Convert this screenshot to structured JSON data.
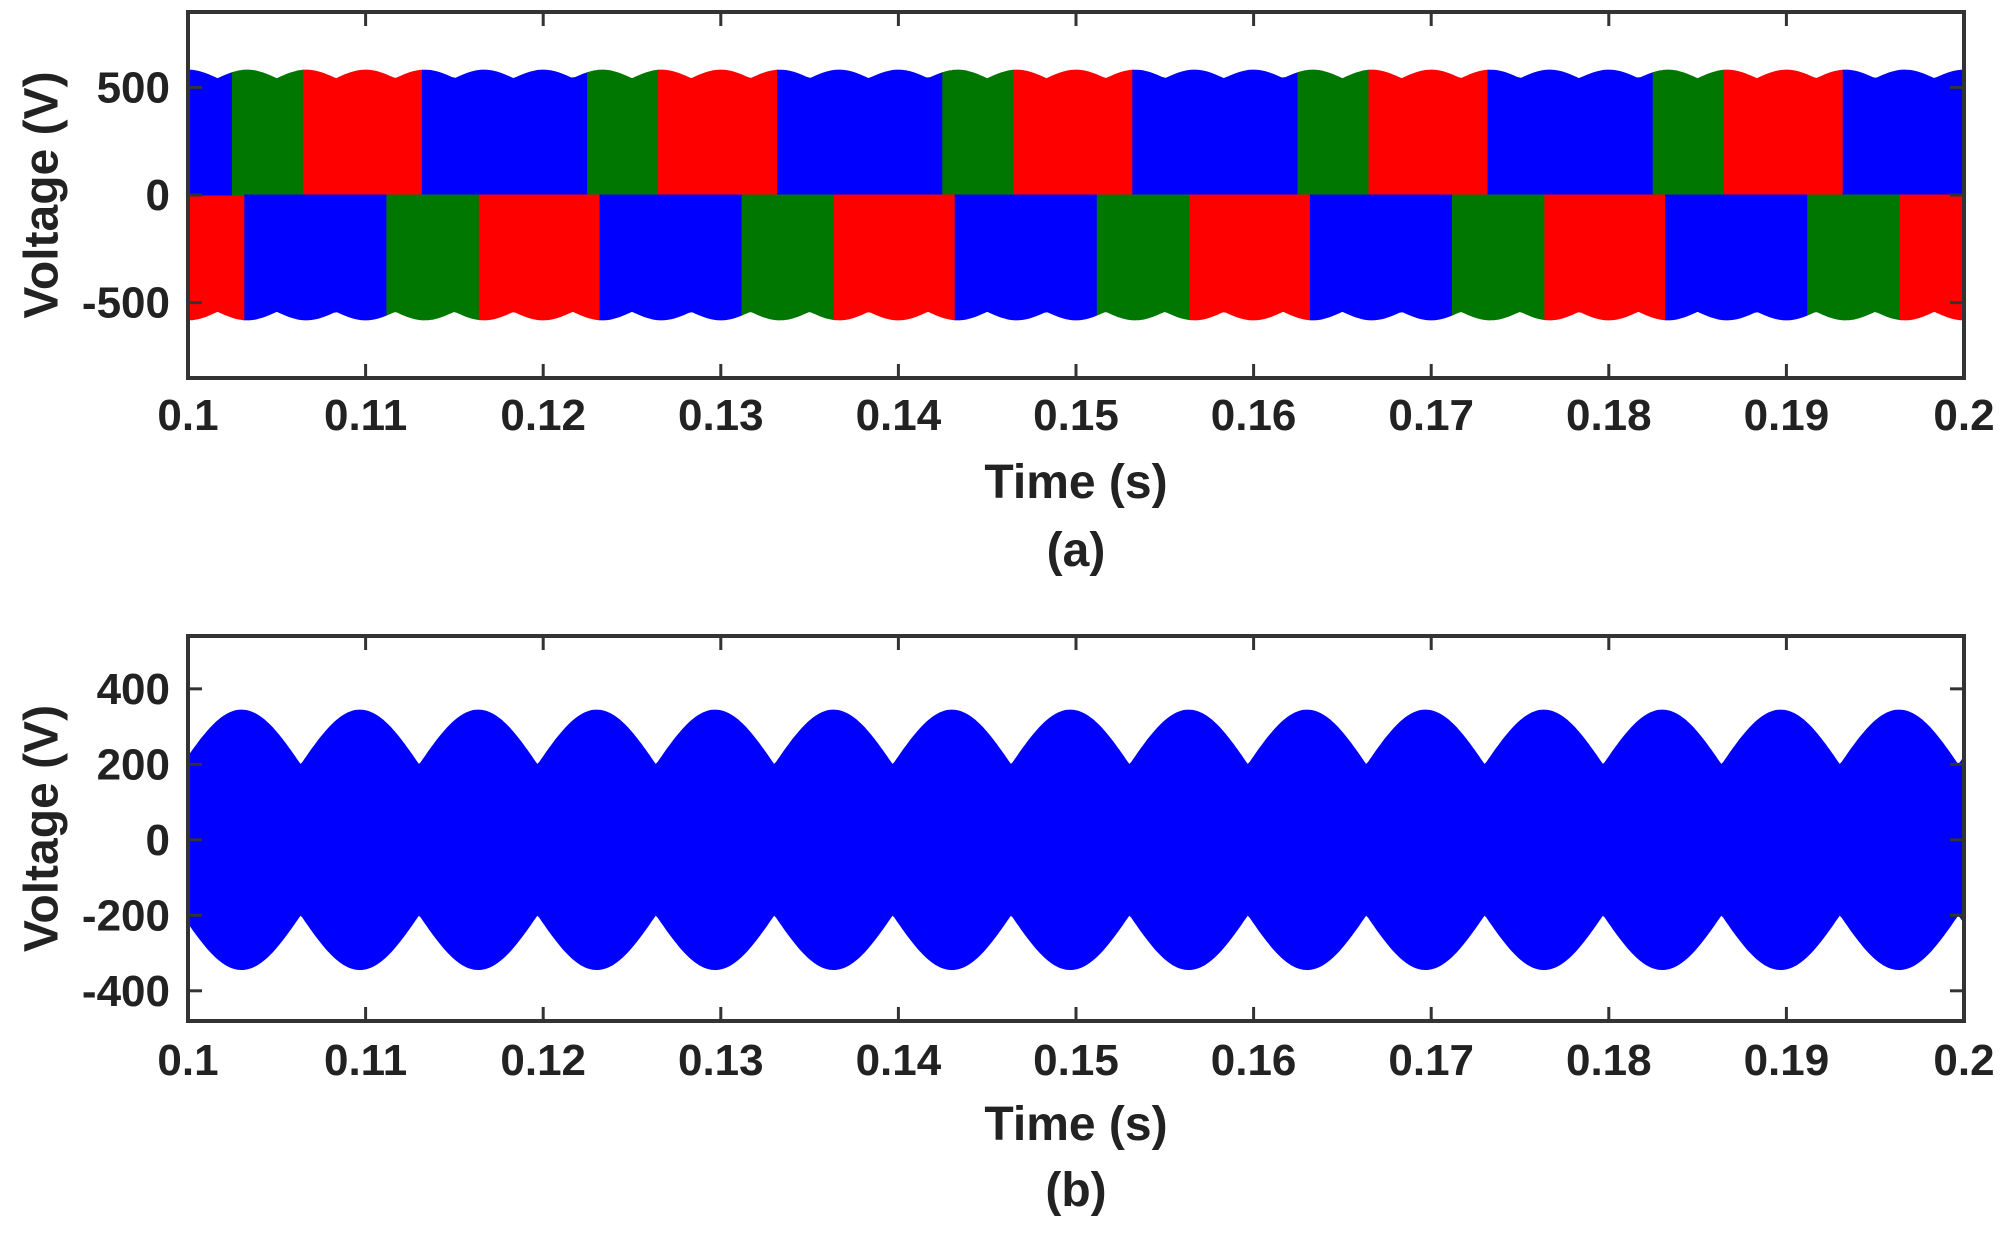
{
  "chart_data": [
    {
      "type": "area",
      "caption": "(a)",
      "xlabel": "Time (s)",
      "ylabel": "Voltage (V)",
      "xlim": [
        0.1,
        0.2
      ],
      "ylim": [
        -850,
        850
      ],
      "xticks": [
        0.1,
        0.11,
        0.12,
        0.13,
        0.14,
        0.15,
        0.16,
        0.17,
        0.18,
        0.19,
        0.2
      ],
      "xtick_labels": [
        "0.1",
        "0.11",
        "0.12",
        "0.13",
        "0.14",
        "0.15",
        "0.16",
        "0.17",
        "0.18",
        "0.19",
        "0.2"
      ],
      "yticks": [
        -500,
        0,
        500
      ],
      "ytick_labels": [
        "-500",
        "0",
        "500"
      ],
      "grid": false,
      "waveform": {
        "fundamental_hz": 50,
        "dc_level_v": 540,
        "ripple_v": 40,
        "ripple_hz": 300
      },
      "series": [
        {
          "color": "#0000ff",
          "segments": [
            [
              0.1,
              0.1012,
              0.1025,
              0.1,
              0.1032
            ],
            [
              0.1,
              0.1132,
              0.1112,
              0.1,
              0.1032
            ],
            [
              0.1,
              0.1132,
              0.1225,
              0.1,
              0.1232
            ],
            [
              0.1,
              0.1332,
              0.1312,
              0.1,
              0.1232
            ],
            [
              0.1,
              0.1332,
              0.1425,
              0.1,
              0.1432
            ],
            [
              0.1,
              0.1532,
              0.1512,
              0.1,
              0.1432
            ],
            [
              0.1,
              0.1532,
              0.1625,
              0.1,
              0.1632
            ],
            [
              0.1,
              0.1732,
              0.1712,
              0.1,
              0.1632
            ],
            [
              0.1,
              0.1732,
              0.1825,
              0.1,
              0.1832
            ],
            [
              0.1,
              0.1932,
              0.1912,
              0.1,
              0.1832
            ],
            [
              0.1,
              0.1932,
              0.2,
              0.1,
              0.2
            ]
          ]
        },
        {
          "color": "#007700",
          "segments": [
            [
              0.1,
              0.1025,
              0.1065,
              0.1,
              0.1025
            ],
            [
              0.1,
              0.1112,
              0.1164,
              0.1,
              0.1112
            ],
            [
              0.1,
              0.1225,
              0.1265,
              0.1,
              0.1225
            ],
            [
              0.1,
              0.1312,
              0.1364,
              0.1,
              0.1312
            ],
            [
              0.1,
              0.1425,
              0.1465,
              0.1,
              0.1425
            ],
            [
              0.1,
              0.1512,
              0.1564,
              0.1,
              0.1512
            ],
            [
              0.1,
              0.1625,
              0.1665,
              0.1,
              0.1625
            ],
            [
              0.1,
              0.1712,
              0.1764,
              0.1,
              0.1712
            ],
            [
              0.1,
              0.1825,
              0.1865,
              0.1,
              0.1825
            ],
            [
              0.1,
              0.1912,
              0.1964,
              0.1,
              0.1912
            ]
          ]
        },
        {
          "color": "#ff0000",
          "segments": [
            [
              0.1,
              0.1065,
              0.1132,
              0.1,
              0.1065
            ],
            [
              0.1,
              0.1164,
              0.1232,
              0.1,
              0.1164
            ],
            [
              0.1,
              0.1265,
              0.1332,
              0.1,
              0.1265
            ],
            [
              0.1,
              0.1364,
              0.1432,
              0.1,
              0.1364
            ],
            [
              0.1,
              0.1465,
              0.1532,
              0.1,
              0.1465
            ],
            [
              0.1,
              0.1564,
              0.1632,
              0.1,
              0.1564
            ],
            [
              0.1,
              0.1665,
              0.1732,
              0.1,
              0.1665
            ],
            [
              0.1,
              0.1764,
              0.1832,
              0.1,
              0.1764
            ],
            [
              0.1,
              0.1865,
              0.1932,
              0.1,
              0.1865
            ],
            [
              0.1,
              0.1964,
              0.2,
              0.1,
              0.1964
            ]
          ]
        }
      ],
      "bands": [
        {
          "x": [
            0.1,
            0.1032
          ],
          "sign": -1,
          "color": "#ff0000"
        },
        {
          "x": [
            0.1,
            0.1012
          ],
          "sign": 1,
          "color": "#0000ff"
        },
        {
          "x": [
            0.1012,
            0.1025
          ],
          "sign": 1,
          "color": "#0000ff"
        },
        {
          "x": [
            0.1025,
            0.1065
          ],
          "sign": 1,
          "color": "#007700"
        },
        {
          "x": [
            0.1065,
            0.1132
          ],
          "sign": 1,
          "color": "#ff0000"
        },
        {
          "x": [
            0.1132,
            0.1225
          ],
          "sign": 1,
          "color": "#0000ff"
        },
        {
          "x": [
            0.1225,
            0.1265
          ],
          "sign": 1,
          "color": "#007700"
        },
        {
          "x": [
            0.1265,
            0.1332
          ],
          "sign": 1,
          "color": "#ff0000"
        },
        {
          "x": [
            0.1332,
            0.1425
          ],
          "sign": 1,
          "color": "#0000ff"
        },
        {
          "x": [
            0.1425,
            0.1465
          ],
          "sign": 1,
          "color": "#007700"
        },
        {
          "x": [
            0.1465,
            0.1532
          ],
          "sign": 1,
          "color": "#ff0000"
        },
        {
          "x": [
            0.1532,
            0.1625
          ],
          "sign": 1,
          "color": "#0000ff"
        },
        {
          "x": [
            0.1625,
            0.1665
          ],
          "sign": 1,
          "color": "#007700"
        },
        {
          "x": [
            0.1665,
            0.1732
          ],
          "sign": 1,
          "color": "#ff0000"
        },
        {
          "x": [
            0.1732,
            0.1825
          ],
          "sign": 1,
          "color": "#0000ff"
        },
        {
          "x": [
            0.1825,
            0.1865
          ],
          "sign": 1,
          "color": "#007700"
        },
        {
          "x": [
            0.1865,
            0.1932
          ],
          "sign": 1,
          "color": "#ff0000"
        },
        {
          "x": [
            0.1932,
            0.2
          ],
          "sign": 1,
          "color": "#0000ff"
        },
        {
          "x": [
            0.1032,
            0.1112
          ],
          "sign": -1,
          "color": "#0000ff"
        },
        {
          "x": [
            0.1112,
            0.1164
          ],
          "sign": -1,
          "color": "#007700"
        },
        {
          "x": [
            0.1164,
            0.1232
          ],
          "sign": -1,
          "color": "#ff0000"
        },
        {
          "x": [
            0.1232,
            0.1312
          ],
          "sign": -1,
          "color": "#0000ff"
        },
        {
          "x": [
            0.1312,
            0.1364
          ],
          "sign": -1,
          "color": "#007700"
        },
        {
          "x": [
            0.1364,
            0.1432
          ],
          "sign": -1,
          "color": "#ff0000"
        },
        {
          "x": [
            0.1432,
            0.1512
          ],
          "sign": -1,
          "color": "#0000ff"
        },
        {
          "x": [
            0.1512,
            0.1564
          ],
          "sign": -1,
          "color": "#007700"
        },
        {
          "x": [
            0.1564,
            0.1632
          ],
          "sign": -1,
          "color": "#ff0000"
        },
        {
          "x": [
            0.1632,
            0.1712
          ],
          "sign": -1,
          "color": "#0000ff"
        },
        {
          "x": [
            0.1712,
            0.1764
          ],
          "sign": -1,
          "color": "#007700"
        },
        {
          "x": [
            0.1764,
            0.1832
          ],
          "sign": -1,
          "color": "#ff0000"
        },
        {
          "x": [
            0.1832,
            0.1912
          ],
          "sign": -1,
          "color": "#0000ff"
        },
        {
          "x": [
            0.1912,
            0.1964
          ],
          "sign": -1,
          "color": "#007700"
        },
        {
          "x": [
            0.1964,
            0.2
          ],
          "sign": -1,
          "color": "#ff0000"
        }
      ]
    },
    {
      "type": "area",
      "caption": "(b)",
      "xlabel": "Time (s)",
      "ylabel": "Voltage (V)",
      "xlim": [
        0.1,
        0.2
      ],
      "ylim": [
        -480,
        540
      ],
      "xticks": [
        0.1,
        0.11,
        0.12,
        0.13,
        0.14,
        0.15,
        0.16,
        0.17,
        0.18,
        0.19,
        0.2
      ],
      "xtick_labels": [
        "0.1",
        "0.11",
        "0.12",
        "0.13",
        "0.14",
        "0.15",
        "0.16",
        "0.17",
        "0.18",
        "0.19",
        "0.2"
      ],
      "yticks": [
        -400,
        -200,
        0,
        200,
        400
      ],
      "ytick_labels": [
        "-400",
        "-200",
        "0",
        "200",
        "400"
      ],
      "grid": false,
      "series": [
        {
          "color": "#0000ff",
          "envelope_peak_v": 345,
          "envelope_min_v": 200,
          "envelope_hz": 150
        }
      ]
    }
  ]
}
